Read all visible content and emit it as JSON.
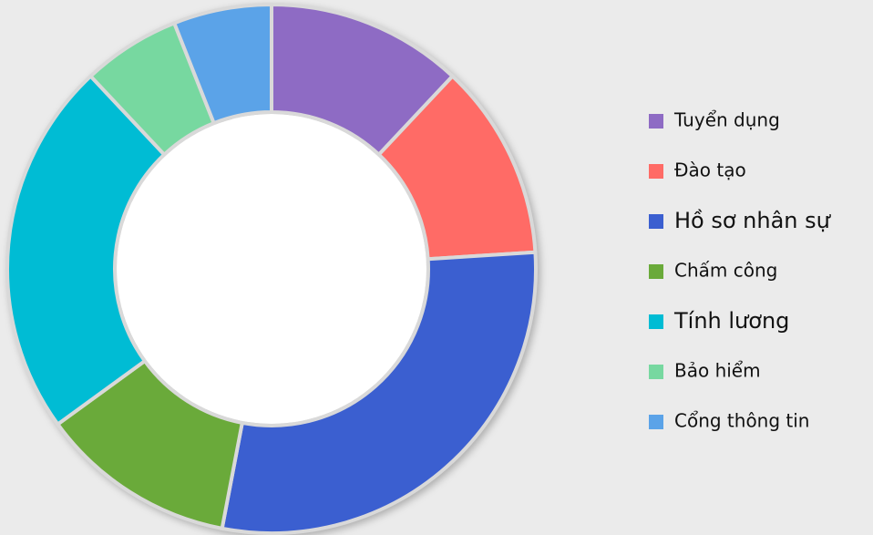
{
  "chart_data": {
    "type": "donut",
    "categories": [
      "Tuyển dụng",
      "Đào tạo",
      "Hồ sơ nhân sự",
      "Chấm công",
      "Tính lương",
      "Bảo hiểm",
      "Cổng thông tin"
    ],
    "values": [
      12,
      12,
      29,
      12,
      23,
      6,
      6
    ],
    "colors": [
      "#8e6bc4",
      "#ff6b66",
      "#3b5fd0",
      "#6aaa3a",
      "#00bcd4",
      "#77d8a0",
      "#5ba3e8"
    ],
    "legend": "right"
  }
}
